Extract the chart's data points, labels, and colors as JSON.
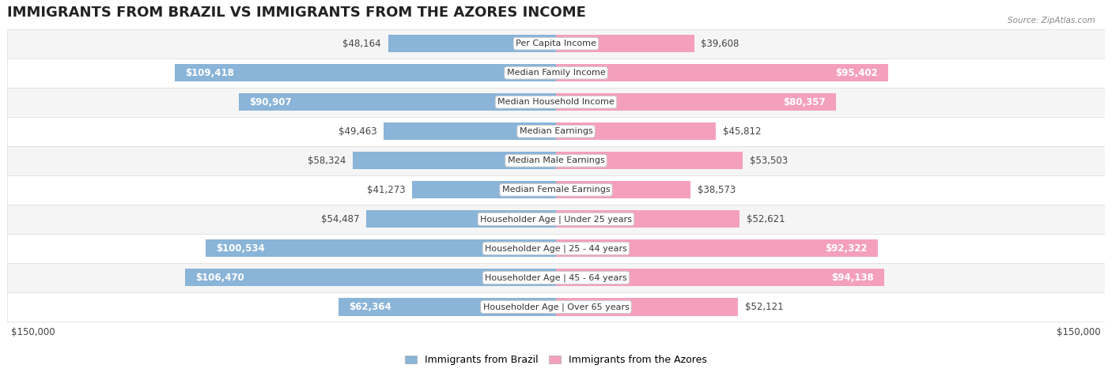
{
  "title": "IMMIGRANTS FROM BRAZIL VS IMMIGRANTS FROM THE AZORES INCOME",
  "source": "Source: ZipAtlas.com",
  "categories": [
    "Per Capita Income",
    "Median Family Income",
    "Median Household Income",
    "Median Earnings",
    "Median Male Earnings",
    "Median Female Earnings",
    "Householder Age | Under 25 years",
    "Householder Age | 25 - 44 years",
    "Householder Age | 45 - 64 years",
    "Householder Age | Over 65 years"
  ],
  "brazil_values": [
    48164,
    109418,
    90907,
    49463,
    58324,
    41273,
    54487,
    100534,
    106470,
    62364
  ],
  "azores_values": [
    39608,
    95402,
    80357,
    45812,
    53503,
    38573,
    52621,
    92322,
    94138,
    52121
  ],
  "brazil_labels": [
    "$48,164",
    "$109,418",
    "$90,907",
    "$49,463",
    "$58,324",
    "$41,273",
    "$54,487",
    "$100,534",
    "$106,470",
    "$62,364"
  ],
  "azores_labels": [
    "$39,608",
    "$95,402",
    "$80,357",
    "$45,812",
    "$53,503",
    "$38,573",
    "$52,621",
    "$92,322",
    "$94,138",
    "$52,121"
  ],
  "brazil_color": "#8ab4d8",
  "azores_color": "#f4a0bc",
  "max_value": 150000,
  "legend_brazil": "Immigrants from Brazil",
  "legend_azores": "Immigrants from the Azores",
  "row_bg_odd": "#f5f5f5",
  "row_bg_even": "#ffffff",
  "row_border": "#dddddd",
  "title_fontsize": 13,
  "label_fontsize": 8.5,
  "category_fontsize": 8,
  "bar_height": 0.6,
  "fig_bg": "#ffffff",
  "inside_label_threshold": 60000
}
